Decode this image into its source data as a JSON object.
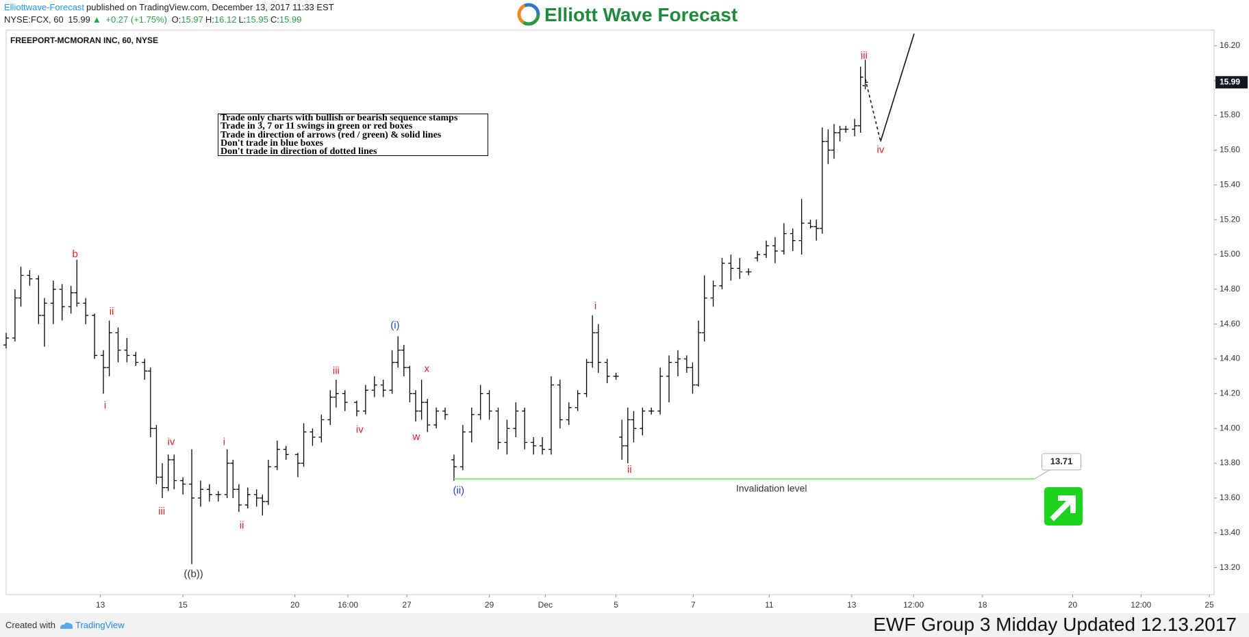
{
  "header": {
    "author": "Elliottwave-Forecast",
    "published": "published on TradingView.com, December 13, 2017 11:33 EST",
    "symbol": "NYSE:FCX, 60",
    "price": "15.99",
    "arrow": "▲",
    "change": "+0.27 (+1.75%)",
    "ohlc": [
      {
        "label": "O:",
        "value": "15.97"
      },
      {
        "label": "H:",
        "value": "16.12"
      },
      {
        "label": "L:",
        "value": "15.95"
      },
      {
        "label": "C:",
        "value": "15.99"
      }
    ]
  },
  "logo": "Elliott Wave Forecast",
  "notes": [
    "Trade only charts with bullish or bearish sequence stamps",
    "Trade in 3, 7 or 11 swings in green or red boxes",
    "Trade in direction of arrows (red / green) & solid lines",
    "Don't trade in blue boxes",
    "Don't trade in direction of dotted lines"
  ],
  "footer": {
    "created_with": "Created with",
    "platform": "TradingView",
    "caption": "EWF Group 3 Midday Updated 12.13.2017"
  },
  "chart_data": {
    "type": "ohlc",
    "title": "FREEPORT-MCMORAN INC, 60, NYSE",
    "color": "#000000",
    "x": [
      0,
      1.5,
      2.5,
      4,
      5.5,
      6.5,
      8,
      9.5,
      11,
      12,
      13.5,
      15,
      16.5,
      17.5,
      19,
      20.5,
      22,
      23.5,
      24.5,
      25.5,
      26.5,
      27.5,
      28.5,
      30,
      31.5,
      33,
      34.5,
      36,
      37.5,
      38.5,
      39.5,
      41,
      42.5,
      43.5,
      44.5,
      46,
      47.5,
      49.5,
      50.5,
      52,
      53.5,
      55,
      56,
      57.5,
      59.5,
      61,
      62.5,
      64,
      65.5,
      66.5,
      67.5,
      68.5,
      69.5,
      70.5,
      71.5,
      73,
      74.5,
      76,
      77.5,
      79,
      80.5,
      82,
      83.5,
      85,
      86.5,
      88,
      89.5,
      91,
      92.5,
      94,
      95.5,
      97,
      98.5,
      99.5,
      100.5,
      102,
      103.5,
      104.5,
      105.5,
      106.5,
      108,
      109.5,
      111,
      112.5,
      114,
      115.5,
      116.5,
      117.5,
      118.5,
      120,
      121.5,
      123,
      124.5,
      126,
      127.5,
      129,
      130.5,
      132,
      133.5,
      135,
      136.5,
      137.5,
      138.5,
      139.5,
      140.5,
      141.5,
      142.5,
      144,
      145,
      145.8
    ],
    "open": [
      14.48,
      14.52,
      14.75,
      14.88,
      14.86,
      14.65,
      14.72,
      14.8,
      14.7,
      14.78,
      14.72,
      14.65,
      14.42,
      14.35,
      14.55,
      14.45,
      14.42,
      14.38,
      14.33,
      14.0,
      13.72,
      13.66,
      13.82,
      13.7,
      13.68,
      13.6,
      13.65,
      13.62,
      13.62,
      13.8,
      13.65,
      13.56,
      13.62,
      13.6,
      13.58,
      13.78,
      13.88,
      13.85,
      13.8,
      13.98,
      13.95,
      14.05,
      14.18,
      14.2,
      14.15,
      14.1,
      14.22,
      14.25,
      14.22,
      14.38,
      14.45,
      14.35,
      14.2,
      14.1,
      14.15,
      14.02,
      14.1,
      13.82,
      13.78,
      13.98,
      14.08,
      14.2,
      14.1,
      13.92,
      14.0,
      14.1,
      13.92,
      13.9,
      13.88,
      14.25,
      14.05,
      14.12,
      14.2,
      14.38,
      14.55,
      14.38,
      14.3,
      13.95,
      13.9,
      14.05,
      14.0,
      14.1,
      14.1,
      14.3,
      14.38,
      14.4,
      14.35,
      14.25,
      14.55,
      14.75,
      14.82,
      14.95,
      14.92,
      14.9,
      14.98,
      15.0,
      15.05,
      15.02,
      15.12,
      15.08,
      15.18,
      15.16,
      15.15,
      15.65,
      15.6,
      15.7,
      15.72,
      15.72,
      15.74,
      15.97
    ],
    "high": [
      14.55,
      14.8,
      14.93,
      14.91,
      14.88,
      14.75,
      14.85,
      14.83,
      14.82,
      14.97,
      14.75,
      14.66,
      14.45,
      14.62,
      14.58,
      14.52,
      14.44,
      14.4,
      14.35,
      14.02,
      13.8,
      13.85,
      13.85,
      13.72,
      13.88,
      13.7,
      13.68,
      13.64,
      13.88,
      13.82,
      13.68,
      13.66,
      13.65,
      13.62,
      13.82,
      13.93,
      13.9,
      13.86,
      14.03,
      14.0,
      14.08,
      14.22,
      14.28,
      14.22,
      14.16,
      14.25,
      14.3,
      14.28,
      14.45,
      14.53,
      14.48,
      14.36,
      14.22,
      14.28,
      14.17,
      14.12,
      14.12,
      13.85,
      14.02,
      14.12,
      14.25,
      14.22,
      14.12,
      14.05,
      14.15,
      14.12,
      13.95,
      13.95,
      14.3,
      14.28,
      14.15,
      14.22,
      14.4,
      14.65,
      14.6,
      14.4,
      14.32,
      14.05,
      14.12,
      14.1,
      14.12,
      14.12,
      14.35,
      14.42,
      14.45,
      14.42,
      14.38,
      14.62,
      14.88,
      14.85,
      14.98,
      15.0,
      14.98,
      14.92,
      15.02,
      15.08,
      15.1,
      15.18,
      15.15,
      15.32,
      15.2,
      15.2,
      15.73,
      15.72,
      15.75,
      15.74,
      15.74,
      15.78,
      16.08,
      16.12
    ],
    "low": [
      14.46,
      14.5,
      14.7,
      14.82,
      14.6,
      14.47,
      14.6,
      14.62,
      14.66,
      14.7,
      14.6,
      14.4,
      14.2,
      14.3,
      14.38,
      14.38,
      14.36,
      14.28,
      13.95,
      13.68,
      13.6,
      13.64,
      13.65,
      13.62,
      13.22,
      13.55,
      13.58,
      13.58,
      13.6,
      13.6,
      13.52,
      13.54,
      13.55,
      13.5,
      13.56,
      13.76,
      13.82,
      13.72,
      13.78,
      13.9,
      13.92,
      14.02,
      14.12,
      14.1,
      14.07,
      14.08,
      14.18,
      14.18,
      14.2,
      14.35,
      14.3,
      14.15,
      14.04,
      14.05,
      13.98,
      14.0,
      14.05,
      13.7,
      13.76,
      13.92,
      14.05,
      14.05,
      13.88,
      13.85,
      13.95,
      13.88,
      13.85,
      13.85,
      13.85,
      14.0,
      14.02,
      14.1,
      14.18,
      14.35,
      14.32,
      14.26,
      14.28,
      13.82,
      13.8,
      13.92,
      13.96,
      14.08,
      14.08,
      14.15,
      14.3,
      14.32,
      14.2,
      14.24,
      14.5,
      14.7,
      14.8,
      14.85,
      14.86,
      14.88,
      14.96,
      14.98,
      14.95,
      15.0,
      15.02,
      15.0,
      15.15,
      15.08,
      15.12,
      15.52,
      15.55,
      15.65,
      15.7,
      15.68,
      15.7,
      15.95
    ],
    "close": [
      14.52,
      14.75,
      14.88,
      14.86,
      14.65,
      14.72,
      14.8,
      14.7,
      14.78,
      14.72,
      14.65,
      14.42,
      14.35,
      14.55,
      14.45,
      14.42,
      14.38,
      14.33,
      14.0,
      13.72,
      13.66,
      13.82,
      13.7,
      13.68,
      13.6,
      13.65,
      13.62,
      13.62,
      13.8,
      13.65,
      13.56,
      13.62,
      13.6,
      13.58,
      13.78,
      13.88,
      13.85,
      13.8,
      13.98,
      13.95,
      14.05,
      14.18,
      14.2,
      14.15,
      14.1,
      14.22,
      14.25,
      14.22,
      14.38,
      14.45,
      14.35,
      14.2,
      14.1,
      14.15,
      14.02,
      14.1,
      14.08,
      13.78,
      13.98,
      14.08,
      14.2,
      14.1,
      13.92,
      14.0,
      14.1,
      13.92,
      13.9,
      13.88,
      14.25,
      14.05,
      14.12,
      14.2,
      14.38,
      14.55,
      14.38,
      14.3,
      14.3,
      13.9,
      14.05,
      14.0,
      14.1,
      14.1,
      14.3,
      14.38,
      14.4,
      14.35,
      14.25,
      14.55,
      14.75,
      14.82,
      14.95,
      14.92,
      14.9,
      14.9,
      15.0,
      15.05,
      15.02,
      15.12,
      15.08,
      15.18,
      15.16,
      15.15,
      15.65,
      15.6,
      15.7,
      15.72,
      15.72,
      15.74,
      16.02,
      15.99
    ],
    "xlim": [
      0,
      205
    ],
    "xticks": [
      {
        "value": 16,
        "label": "13"
      },
      {
        "value": 30,
        "label": "15"
      },
      {
        "value": 49,
        "label": "20"
      },
      {
        "value": 58,
        "label": "16:00"
      },
      {
        "value": 68,
        "label": "27"
      },
      {
        "value": 82,
        "label": "29"
      },
      {
        "value": 91.5,
        "label": "Dec"
      },
      {
        "value": 103.5,
        "label": "5"
      },
      {
        "value": 116.6,
        "label": "7"
      },
      {
        "value": 129.5,
        "label": "11"
      },
      {
        "value": 143.5,
        "label": "13"
      },
      {
        "value": 154,
        "label": "12:00"
      },
      {
        "value": 165.7,
        "label": "18"
      },
      {
        "value": 181,
        "label": "20"
      },
      {
        "value": 192.6,
        "label": "12:00"
      },
      {
        "value": 204.2,
        "label": "25"
      }
    ],
    "ylim": [
      13.045,
      16.29
    ],
    "yticks": [
      {
        "value": 13.2,
        "label": "13.20"
      },
      {
        "value": 13.4,
        "label": "13.40"
      },
      {
        "value": 13.6,
        "label": "13.60"
      },
      {
        "value": 13.8,
        "label": "13.80"
      },
      {
        "value": 14.0,
        "label": "14.00"
      },
      {
        "value": 14.2,
        "label": "14.20"
      },
      {
        "value": 14.4,
        "label": "14.40"
      },
      {
        "value": 14.6,
        "label": "14.60"
      },
      {
        "value": 14.8,
        "label": "14.80"
      },
      {
        "value": 15.0,
        "label": "15.00"
      },
      {
        "value": 15.2,
        "label": "15.20"
      },
      {
        "value": 15.4,
        "label": "15.40"
      },
      {
        "value": 15.6,
        "label": "15.60"
      },
      {
        "value": 15.8,
        "label": "15.80"
      },
      {
        "value": 16.0,
        "label": "16.00"
      },
      {
        "value": 16.2,
        "label": "16.20"
      }
    ],
    "grid": false,
    "last_price": 15.99,
    "wave_labels": [
      {
        "text": "b",
        "x": 11.7,
        "y": 15.0,
        "color": "#e02020"
      },
      {
        "text": "ii",
        "x": 17.9,
        "y": 14.67,
        "color": "#e02020"
      },
      {
        "text": "i",
        "x": 16.8,
        "y": 14.13,
        "color": "#e02020"
      },
      {
        "text": "iv",
        "x": 28,
        "y": 13.92,
        "color": "#e02020"
      },
      {
        "text": "iii",
        "x": 26.4,
        "y": 13.52,
        "color": "#e02020"
      },
      {
        "text": "((b))",
        "x": 31.8,
        "y": 13.16,
        "color": "#333333"
      },
      {
        "text": "i",
        "x": 37,
        "y": 13.92,
        "color": "#e02020"
      },
      {
        "text": "ii",
        "x": 40,
        "y": 13.44,
        "color": "#e02020"
      },
      {
        "text": "iii",
        "x": 56,
        "y": 14.33,
        "color": "#e02020"
      },
      {
        "text": "iv",
        "x": 60,
        "y": 13.99,
        "color": "#e02020"
      },
      {
        "text": "(i)",
        "x": 66,
        "y": 14.59,
        "color": "#2040d0"
      },
      {
        "text": "x",
        "x": 71.4,
        "y": 14.34,
        "color": "#e02020"
      },
      {
        "text": "w",
        "x": 69.6,
        "y": 13.95,
        "color": "#e02020"
      },
      {
        "text": "(ii)",
        "x": 76.8,
        "y": 13.64,
        "color": "#2040d0"
      },
      {
        "text": "i",
        "x": 100,
        "y": 14.7,
        "color": "#e02020"
      },
      {
        "text": "ii",
        "x": 105.8,
        "y": 13.76,
        "color": "#e02020"
      },
      {
        "text": "iii",
        "x": 145.6,
        "y": 16.14,
        "color": "#e02020"
      },
      {
        "text": "iv",
        "x": 148.4,
        "y": 15.6,
        "color": "#e02020"
      }
    ],
    "projection": {
      "x": [
        145.8,
        148.4,
        154.1
      ],
      "y": [
        16.01,
        15.65,
        16.27
      ],
      "styles": [
        "dashed",
        "solid"
      ]
    },
    "invalidation": {
      "value": 13.71,
      "x_start": 76,
      "x_end": 174.5,
      "label": "Invalidation level",
      "color": "#7ee87e"
    }
  }
}
